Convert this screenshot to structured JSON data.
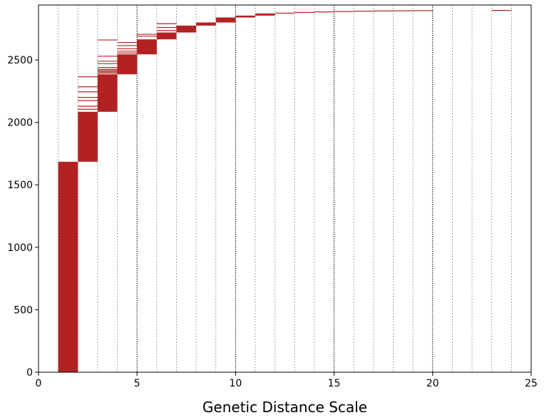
{
  "chart_data": {
    "type": "bar",
    "title": "",
    "xlabel": "Genetic Distance Scale",
    "ylabel": "",
    "xlim": [
      0,
      25
    ],
    "ylim": [
      0,
      2940
    ],
    "xticks": [
      0,
      5,
      10,
      15,
      20,
      25
    ],
    "yticks": [
      0,
      500,
      1000,
      1500,
      2000,
      2500
    ],
    "grid": "vertical dotted lines at every integer distance; heavier at multiples of 5",
    "color": "#b22222",
    "bins": [
      {
        "x0": 1,
        "x1": 2,
        "y_low": 0,
        "y_high": 1685
      },
      {
        "x0": 2,
        "x1": 3,
        "y_low": 1685,
        "y_high": 2085
      },
      {
        "x0": 3,
        "x1": 4,
        "y_low": 2085,
        "y_high": 2385
      },
      {
        "x0": 4,
        "x1": 5,
        "y_low": 2385,
        "y_high": 2545
      },
      {
        "x0": 5,
        "x1": 6,
        "y_low": 2545,
        "y_high": 2665
      },
      {
        "x0": 6,
        "x1": 7,
        "y_low": 2665,
        "y_high": 2720
      },
      {
        "x0": 7,
        "x1": 8,
        "y_low": 2720,
        "y_high": 2775
      },
      {
        "x0": 8,
        "x1": 9,
        "y_low": 2775,
        "y_high": 2800
      },
      {
        "x0": 9,
        "x1": 10,
        "y_low": 2800,
        "y_high": 2840
      },
      {
        "x0": 10,
        "x1": 11,
        "y_low": 2840,
        "y_high": 2855
      },
      {
        "x0": 11,
        "x1": 12,
        "y_low": 2855,
        "y_high": 2872
      },
      {
        "x0": 12,
        "x1": 13,
        "y_low": 2872,
        "y_high": 2878
      },
      {
        "x0": 13,
        "x1": 14,
        "y_low": 2878,
        "y_high": 2884
      },
      {
        "x0": 14,
        "x1": 15,
        "y_low": 2884,
        "y_high": 2888
      },
      {
        "x0": 15,
        "x1": 16,
        "y_low": 2888,
        "y_high": 2891
      },
      {
        "x0": 16,
        "x1": 17,
        "y_low": 2891,
        "y_high": 2894
      },
      {
        "x0": 17,
        "x1": 18,
        "y_low": 2894,
        "y_high": 2896
      },
      {
        "x0": 18,
        "x1": 19,
        "y_low": 2896,
        "y_high": 2897
      },
      {
        "x0": 19,
        "x1": 20,
        "y_low": 2897,
        "y_high": 2898
      },
      {
        "x0": 23,
        "x1": 24,
        "y_low": 2899,
        "y_high": 2900
      }
    ],
    "outlier_lines": [
      {
        "x0": 2,
        "x1": 3,
        "y": [
          2105,
          2130,
          2175,
          2200,
          2245,
          2285,
          2365
        ]
      },
      {
        "x0": 3,
        "x1": 4,
        "y": [
          2395,
          2405,
          2415,
          2425,
          2440,
          2470,
          2490,
          2530,
          2660
        ]
      },
      {
        "x0": 4,
        "x1": 5,
        "y": [
          2555,
          2570,
          2590,
          2615,
          2640
        ]
      },
      {
        "x0": 5,
        "x1": 6,
        "y": [
          2690,
          2705
        ]
      },
      {
        "x0": 6,
        "x1": 7,
        "y": [
          2735,
          2760,
          2790
        ]
      }
    ]
  }
}
